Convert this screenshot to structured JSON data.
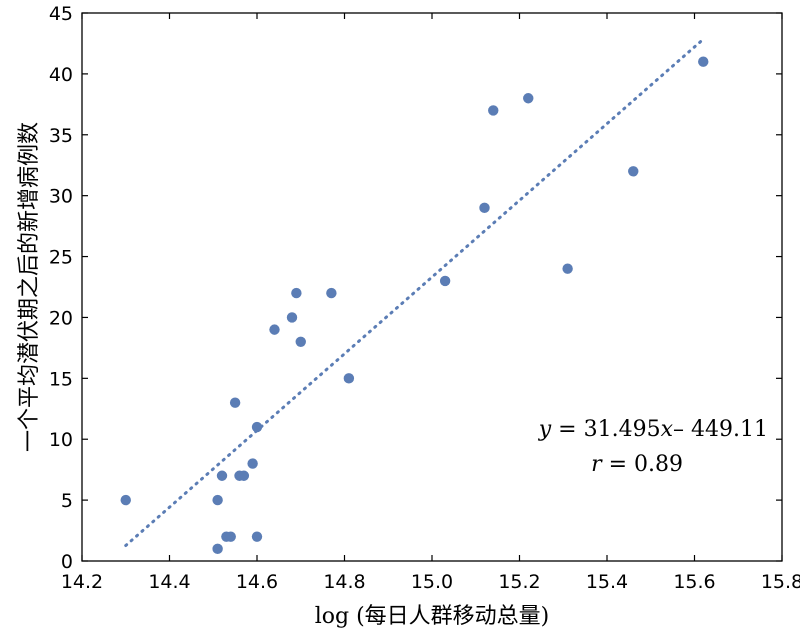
{
  "chart_data": {
    "type": "scatter",
    "xlabel": "log (每日人群移动总量)",
    "ylabel": "一个平均潜伏期之后的新增病例数",
    "xlim": [
      14.2,
      15.8
    ],
    "ylim": [
      0,
      45
    ],
    "xticks": [
      "14.2",
      "14.4",
      "14.6",
      "14.8",
      "15.0",
      "15.2",
      "15.4",
      "15.6",
      "15.8"
    ],
    "yticks": [
      "0",
      "5",
      "10",
      "15",
      "20",
      "25",
      "30",
      "35",
      "40",
      "45"
    ],
    "grid": false,
    "point_color": "#5b7db5",
    "trend_color": "#5b7db5",
    "trend": {
      "slope": 31.495,
      "intercept": -449.11,
      "x_range": [
        14.3,
        15.62
      ],
      "style": "dotted"
    },
    "annotation": {
      "line1_lhs": "y",
      "line1_rhs": " = 31.495",
      "line1_var": "x",
      "line1_tail": "– 449.11",
      "line2_lhs": "r",
      "line2_rhs": " = 0.89"
    },
    "points": [
      {
        "x": 14.3,
        "y": 5
      },
      {
        "x": 14.51,
        "y": 1
      },
      {
        "x": 14.51,
        "y": 5
      },
      {
        "x": 14.52,
        "y": 7
      },
      {
        "x": 14.53,
        "y": 2
      },
      {
        "x": 14.54,
        "y": 2
      },
      {
        "x": 14.55,
        "y": 13
      },
      {
        "x": 14.56,
        "y": 7
      },
      {
        "x": 14.57,
        "y": 7
      },
      {
        "x": 14.59,
        "y": 8
      },
      {
        "x": 14.6,
        "y": 2
      },
      {
        "x": 14.6,
        "y": 11
      },
      {
        "x": 14.64,
        "y": 19
      },
      {
        "x": 14.68,
        "y": 20
      },
      {
        "x": 14.69,
        "y": 22
      },
      {
        "x": 14.7,
        "y": 18
      },
      {
        "x": 14.77,
        "y": 22
      },
      {
        "x": 14.81,
        "y": 15
      },
      {
        "x": 15.03,
        "y": 23
      },
      {
        "x": 15.12,
        "y": 29
      },
      {
        "x": 15.14,
        "y": 37
      },
      {
        "x": 15.22,
        "y": 38
      },
      {
        "x": 15.31,
        "y": 24
      },
      {
        "x": 15.46,
        "y": 32
      },
      {
        "x": 15.62,
        "y": 41
      }
    ]
  }
}
